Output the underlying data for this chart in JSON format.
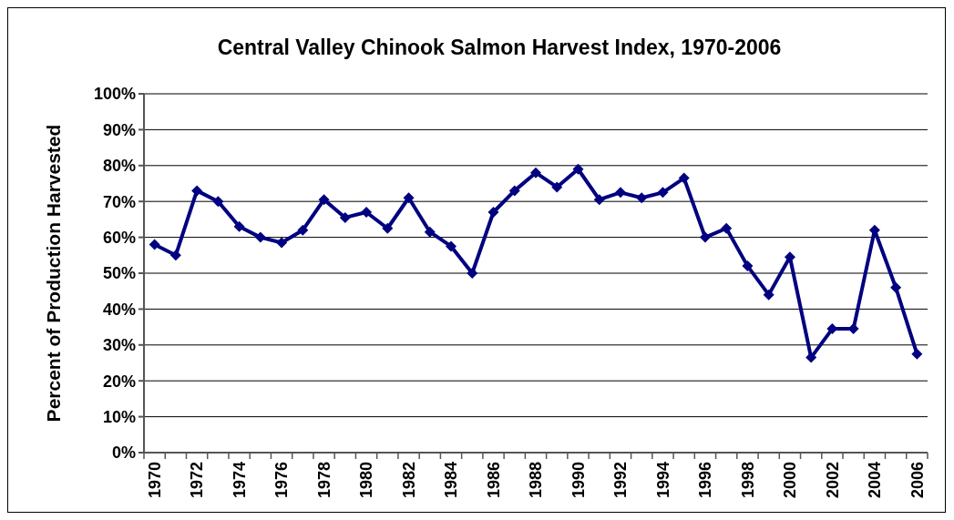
{
  "chart_data": {
    "type": "line",
    "title": "Central Valley Chinook Salmon Harvest Index, 1970-2006",
    "ylabel": "Percent of Production Harvested",
    "categories": [
      "1970",
      null,
      "1972",
      null,
      "1974",
      null,
      "1976",
      null,
      "1978",
      null,
      "1980",
      null,
      "1982",
      null,
      "1984",
      null,
      "1986",
      null,
      "1988",
      null,
      "1990",
      null,
      "1992",
      null,
      "1994",
      null,
      "1996",
      null,
      "1998",
      null,
      "2000",
      null,
      "2002",
      null,
      "2004",
      null,
      "2006"
    ],
    "series": [
      {
        "color": "#000080",
        "values": [
          58,
          55,
          73,
          70,
          63,
          60,
          58.5,
          62,
          70.5,
          65.5,
          67,
          62.5,
          71,
          61.5,
          57.5,
          50,
          67,
          73,
          78,
          74,
          79,
          70.5,
          72.5,
          71,
          72.5,
          76.5,
          60,
          62.5,
          52,
          44,
          54.5,
          26.5,
          34.5,
          34.5,
          62,
          46,
          27.5
        ]
      }
    ],
    "ylim": [
      0,
      100
    ],
    "yticks": [
      {
        "value": 0,
        "label": "0%"
      },
      {
        "value": 10,
        "label": "10%"
      },
      {
        "value": 20,
        "label": "20%"
      },
      {
        "value": 30,
        "label": "30%"
      },
      {
        "value": 40,
        "label": "40%"
      },
      {
        "value": 50,
        "label": "50%"
      },
      {
        "value": 60,
        "label": "60%"
      },
      {
        "value": 70,
        "label": "70%"
      },
      {
        "value": 80,
        "label": "80%"
      },
      {
        "value": 90,
        "label": "90%"
      },
      {
        "value": 100,
        "label": "100%"
      }
    ],
    "grid": "y",
    "marker": "diamond",
    "line_style": "solid"
  }
}
